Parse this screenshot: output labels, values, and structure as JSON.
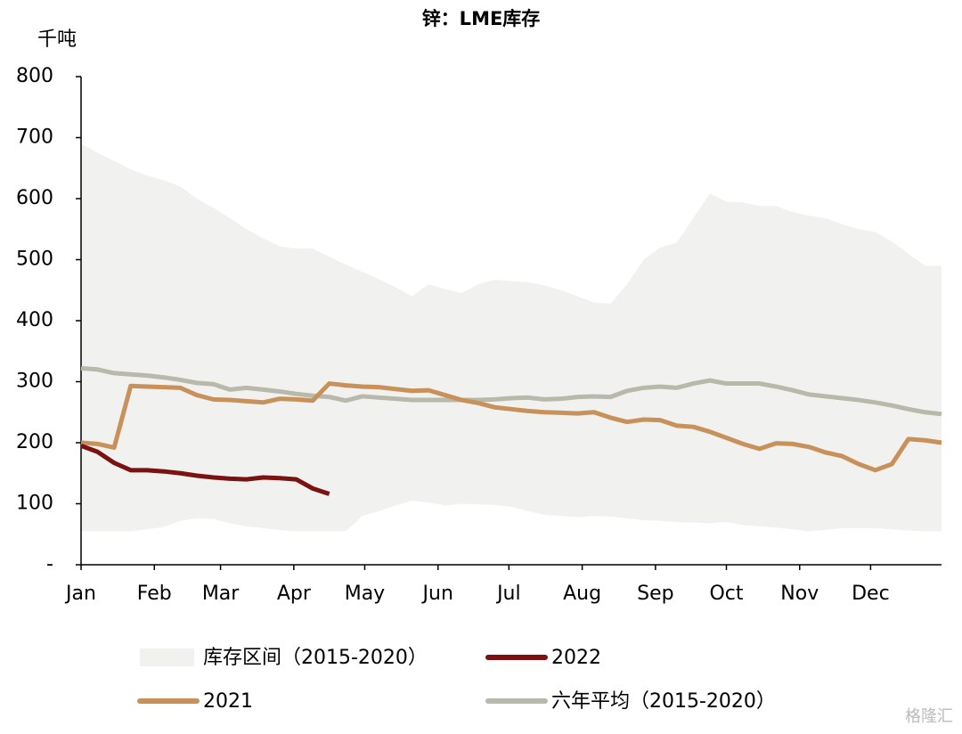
{
  "chart_data": {
    "type": "line",
    "title": "锌：LME库存",
    "y_label": "千吨",
    "watermark": "格隆汇",
    "xlim": [
      1,
      365
    ],
    "xticks": [
      {
        "value": 1,
        "label": "Jan"
      },
      {
        "value": 32,
        "label": "Feb"
      },
      {
        "value": 60,
        "label": "Mar"
      },
      {
        "value": 91,
        "label": "Apr"
      },
      {
        "value": 121,
        "label": "May"
      },
      {
        "value": 152,
        "label": "Jun"
      },
      {
        "value": 182,
        "label": "Jul"
      },
      {
        "value": 213,
        "label": "Aug"
      },
      {
        "value": 244,
        "label": "Sep"
      },
      {
        "value": 274,
        "label": "Oct"
      },
      {
        "value": 305,
        "label": "Nov"
      },
      {
        "value": 335,
        "label": "Dec"
      }
    ],
    "ylim": [
      0,
      800
    ],
    "yticks": [
      {
        "value": 0,
        "label": "-"
      },
      100,
      200,
      300,
      400,
      500,
      600,
      700,
      800
    ],
    "x": [
      1,
      8,
      15,
      22,
      29,
      36,
      43,
      50,
      57,
      64,
      71,
      78,
      85,
      92,
      99,
      106,
      113,
      120,
      127,
      134,
      141,
      148,
      155,
      162,
      169,
      176,
      183,
      190,
      197,
      204,
      211,
      218,
      225,
      232,
      239,
      246,
      253,
      260,
      267,
      274,
      281,
      288,
      295,
      302,
      309,
      316,
      323,
      330,
      337,
      344,
      351,
      358,
      365
    ],
    "band": {
      "name": "库存区间（2015-2020）",
      "color": "#f1f1ef",
      "upper": [
        690,
        675,
        662,
        648,
        638,
        630,
        620,
        600,
        585,
        568,
        550,
        535,
        522,
        518,
        518,
        505,
        492,
        480,
        468,
        455,
        440,
        460,
        452,
        445,
        460,
        467,
        465,
        463,
        458,
        450,
        440,
        430,
        428,
        460,
        500,
        520,
        528,
        568,
        608,
        595,
        594,
        588,
        588,
        578,
        572,
        568,
        558,
        550,
        545,
        530,
        510,
        490,
        490
      ],
      "lower": [
        55,
        55,
        55,
        55,
        58,
        62,
        72,
        76,
        75,
        68,
        63,
        60,
        57,
        55,
        55,
        55,
        55,
        80,
        88,
        97,
        105,
        102,
        97,
        100,
        99,
        98,
        95,
        88,
        82,
        80,
        78,
        80,
        79,
        76,
        73,
        72,
        70,
        69,
        68,
        70,
        65,
        63,
        61,
        58,
        55,
        57,
        60,
        60,
        60,
        58,
        56,
        55,
        55
      ]
    },
    "series": [
      {
        "name": "2022",
        "color": "#7a1212",
        "values": [
          195,
          185,
          167,
          155,
          155,
          153,
          150,
          146,
          143,
          141,
          140,
          143,
          142,
          140,
          125,
          116,
          null,
          null,
          null,
          null,
          null,
          null,
          null,
          null,
          null,
          null,
          null,
          null,
          null,
          null,
          null,
          null,
          null,
          null,
          null,
          null,
          null,
          null,
          null,
          null,
          null,
          null,
          null,
          null,
          null,
          null,
          null,
          null,
          null,
          null,
          null,
          null,
          null
        ]
      },
      {
        "name": "2021",
        "color": "#c8915a",
        "values": [
          200,
          198,
          192,
          293,
          292,
          291,
          290,
          278,
          271,
          270,
          268,
          266,
          272,
          271,
          269,
          297,
          294,
          292,
          291,
          288,
          285,
          286,
          278,
          270,
          265,
          258,
          255,
          252,
          250,
          249,
          248,
          250,
          241,
          234,
          238,
          237,
          228,
          226,
          218,
          208,
          198,
          190,
          199,
          198,
          193,
          184,
          178,
          165,
          155,
          165,
          206,
          204,
          200
        ]
      },
      {
        "name": "六年平均（2015-2020）",
        "color": "#b8b9ab",
        "values": [
          322,
          320,
          314,
          312,
          310,
          307,
          303,
          298,
          296,
          287,
          290,
          287,
          284,
          280,
          277,
          275,
          269,
          276,
          274,
          272,
          270,
          270,
          270,
          270,
          270,
          271,
          273,
          274,
          271,
          272,
          275,
          276,
          275,
          285,
          290,
          292,
          290,
          297,
          302,
          297,
          297,
          297,
          292,
          286,
          279,
          276,
          273,
          270,
          266,
          261,
          255,
          250,
          247
        ]
      }
    ]
  }
}
